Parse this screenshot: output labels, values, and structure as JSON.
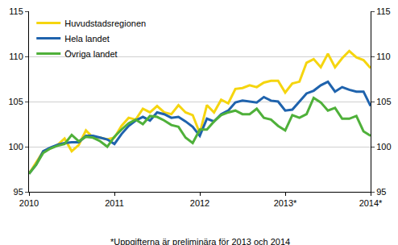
{
  "chart_data": {
    "type": "line",
    "note": "*Uppgifterna är preliminära för 2013 och 2014",
    "categories": [
      "2010",
      null,
      null,
      null,
      null,
      null,
      null,
      null,
      null,
      null,
      null,
      null,
      "2011",
      null,
      null,
      null,
      null,
      null,
      null,
      null,
      null,
      null,
      null,
      null,
      "2012",
      null,
      null,
      null,
      null,
      null,
      null,
      null,
      null,
      null,
      null,
      null,
      "2013*",
      null,
      null,
      null,
      null,
      null,
      null,
      null,
      null,
      null,
      null,
      null,
      "2014*"
    ],
    "series": [
      {
        "name": "Huvudstadsregionen",
        "color": "#f5d50f",
        "values": [
          97.0,
          98.2,
          99.5,
          99.8,
          100.2,
          100.9,
          99.5,
          100.2,
          101.8,
          101.0,
          101.0,
          100.8,
          101.0,
          102.3,
          103.2,
          103.0,
          104.2,
          103.8,
          104.5,
          103.8,
          103.6,
          104.6,
          103.8,
          103.5,
          101.5,
          104.6,
          103.8,
          105.2,
          104.8,
          106.4,
          106.5,
          106.8,
          106.6,
          107.1,
          107.3,
          107.3,
          106.0,
          107.0,
          107.2,
          109.3,
          109.7,
          108.8,
          110.3,
          108.8,
          109.8,
          110.6,
          109.9,
          109.6,
          108.7
        ]
      },
      {
        "name": "Hela landet",
        "color": "#1f63ad",
        "values": [
          97.0,
          98.0,
          99.5,
          99.9,
          100.2,
          100.4,
          100.5,
          100.5,
          101.2,
          101.2,
          101.0,
          100.8,
          100.3,
          101.4,
          102.3,
          102.9,
          103.3,
          102.9,
          103.8,
          103.6,
          103.2,
          103.3,
          102.8,
          102.2,
          101.2,
          103.1,
          102.8,
          103.6,
          104.0,
          104.9,
          105.1,
          105.0,
          104.9,
          105.5,
          105.1,
          105.0,
          104.0,
          104.1,
          105.0,
          105.9,
          106.2,
          106.8,
          107.2,
          106.1,
          106.6,
          106.3,
          106.1,
          106.1,
          104.5
        ]
      },
      {
        "name": "Övriga landet",
        "color": "#4fb03a",
        "values": [
          97.0,
          98.0,
          99.3,
          99.8,
          100.1,
          100.3,
          101.3,
          100.6,
          101.1,
          101.0,
          100.6,
          100.0,
          101.1,
          101.9,
          102.6,
          103.0,
          102.5,
          103.4,
          103.3,
          102.9,
          102.4,
          102.2,
          101.0,
          100.4,
          101.9,
          101.9,
          102.8,
          103.5,
          103.8,
          104.0,
          103.6,
          103.6,
          104.2,
          103.2,
          103.0,
          102.3,
          101.8,
          103.5,
          103.2,
          103.6,
          105.4,
          104.9,
          104.0,
          104.3,
          103.1,
          103.1,
          103.4,
          101.7,
          101.2
        ]
      }
    ],
    "ylim": [
      95,
      115
    ],
    "yticks": [
      95,
      100,
      105,
      110,
      115
    ],
    "y2lim": [
      95,
      115
    ],
    "y2ticks": [
      95,
      100,
      105,
      110,
      115
    ],
    "grid": true,
    "legend": "top-left"
  }
}
